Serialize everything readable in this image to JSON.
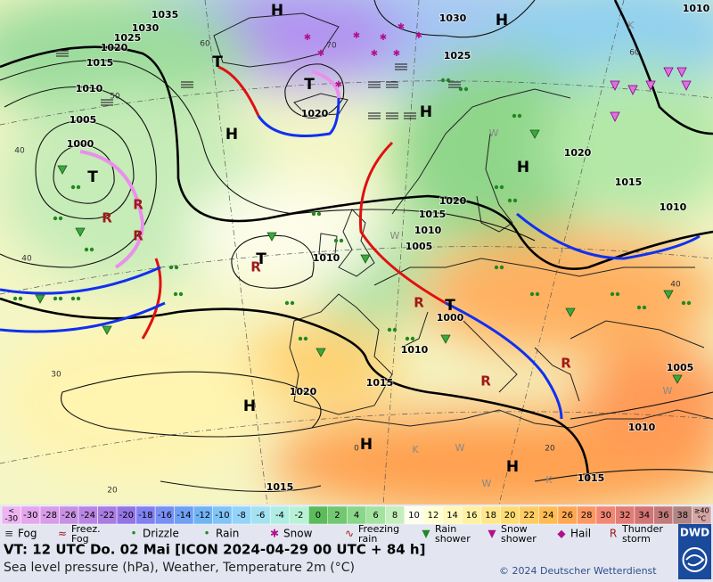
{
  "map": {
    "pressure_labels": [
      "1035",
      "1030",
      "1025",
      "1020",
      "1015",
      "1010",
      "1005",
      "1000",
      "1030",
      "1025",
      "1020",
      "1020",
      "1015",
      "1010",
      "1020",
      "1015",
      "1010",
      "1005",
      "1010",
      "1000",
      "1010",
      "1020",
      "1015",
      "1005",
      "1010",
      "1015",
      "1015",
      "1010"
    ],
    "centers": [
      "H",
      "H",
      "T",
      "T",
      "H",
      "H",
      "T",
      "H",
      "T",
      "T",
      "H",
      "H",
      "H"
    ],
    "isotherm_labels": [
      "60",
      "70",
      "60",
      "50",
      "40",
      "40",
      "40",
      "30",
      "20",
      "20",
      "0"
    ],
    "air_mass_labels": [
      "K",
      "K",
      "K",
      "W",
      "W",
      "W",
      "W",
      "W"
    ]
  },
  "color_scale": {
    "low_label": [
      "<",
      "-30"
    ],
    "values": [
      -30,
      -28,
      -26,
      -24,
      -22,
      -20,
      -18,
      -16,
      -14,
      -12,
      -10,
      -8,
      -6,
      -4,
      -2,
      0,
      2,
      4,
      6,
      8,
      10,
      12,
      14,
      16,
      18,
      20,
      22,
      24,
      26,
      28,
      30,
      32,
      34,
      36,
      38
    ],
    "colors": [
      "#e4a6ec",
      "#d89ce8",
      "#c890e4",
      "#b886e2",
      "#a87ce0",
      "#9474e4",
      "#8080f0",
      "#7890f4",
      "#70a0f4",
      "#70b4f6",
      "#80c4f8",
      "#94d4f8",
      "#a4e2f2",
      "#aeece4",
      "#b8f2d6",
      "#5cbc5c",
      "#72c872",
      "#8ad68a",
      "#a4e2a0",
      "#c4eebc",
      "#fdfdf0",
      "#ffffd2",
      "#fff8ba",
      "#fff0a2",
      "#ffe68a",
      "#ffdc72",
      "#ffcc62",
      "#ffbc52",
      "#ffa852",
      "#fb9860",
      "#f28872",
      "#e27c74",
      "#d27474",
      "#c27a7a",
      "#b28484"
    ],
    "low_color": "#ecb4f0",
    "high_label": [
      "≥40",
      "°C"
    ],
    "high_color": "#d4a6a6"
  },
  "legend": [
    {
      "lines": [
        "Fog"
      ]
    },
    {
      "lines": [
        "Freez.",
        "Fog"
      ]
    },
    {
      "lines": [
        "Drizzle"
      ]
    },
    {
      "lines": [
        "Rain"
      ]
    },
    {
      "lines": [
        "Snow"
      ]
    },
    {
      "lines": [
        "Freezing",
        "rain"
      ]
    },
    {
      "lines": [
        "Rain",
        "shower"
      ]
    },
    {
      "lines": [
        "Snow",
        "shower"
      ]
    },
    {
      "lines": [
        "Hail"
      ]
    },
    {
      "lines": [
        "Thunder",
        "storm"
      ]
    }
  ],
  "footer": {
    "valid_time": "VT: 12 UTC Do.  02 Mai [ICON 2024-04-29  00 UTC + 84 h]",
    "description": "Sea level pressure (hPa), Weather, Temperature 2m (°C)",
    "copyright": "© 2024 Deutscher Wetterdienst",
    "logo": "DWD"
  }
}
